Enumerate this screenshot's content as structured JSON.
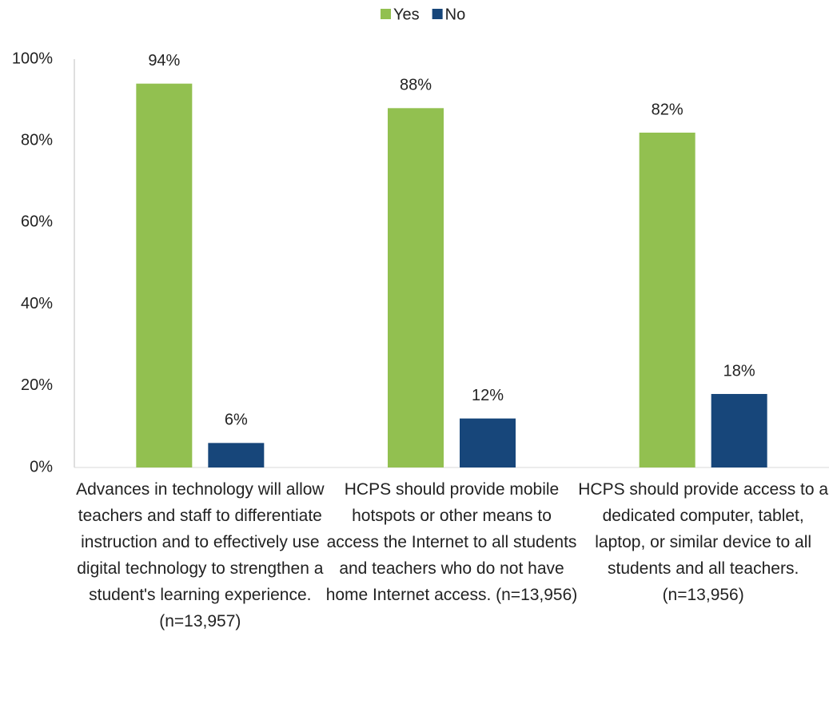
{
  "chart_data": {
    "type": "bar",
    "categories": [
      "Advances in technology will allow teachers and staff to differentiate instruction and to effectively use digital technology to strengthen a student's learning experience. (n=13,957)",
      "HCPS should provide mobile hotspots or other means to access the Internet to all students and teachers who do not have home Internet access. (n=13,956)",
      "HCPS should provide access to a dedicated computer, tablet, laptop, or similar device to all students and all teachers. (n=13,956)"
    ],
    "series": [
      {
        "name": "Yes",
        "color": "#92c050",
        "values": [
          94,
          88,
          82
        ],
        "value_labels": [
          "94%",
          "88%",
          "82%"
        ]
      },
      {
        "name": "No",
        "color": "#17467a",
        "values": [
          6,
          12,
          18
        ],
        "value_labels": [
          "6%",
          "12%",
          "18%"
        ]
      }
    ],
    "ylim": [
      0,
      100
    ],
    "yticks": [
      {
        "value": 0,
        "label": "0%"
      },
      {
        "value": 20,
        "label": "20%"
      },
      {
        "value": 40,
        "label": "40%"
      },
      {
        "value": 60,
        "label": "60%"
      },
      {
        "value": 80,
        "label": "80%"
      },
      {
        "value": 100,
        "label": "100%"
      }
    ],
    "legend": "top"
  }
}
